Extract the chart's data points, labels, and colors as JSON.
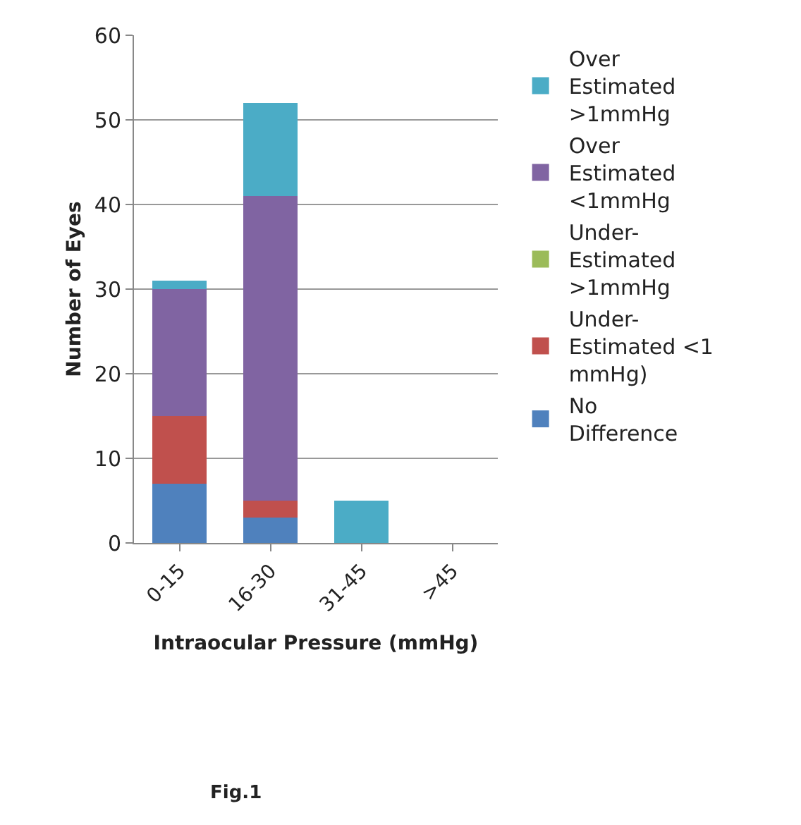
{
  "chart_data": {
    "type": "bar",
    "stacked": true,
    "xlabel": "Intraocular Pressure (mmHg)",
    "ylabel": "Number of Eyes",
    "categories": [
      "0-15",
      "16-30",
      "31-45",
      ">45"
    ],
    "series": [
      {
        "name": "No Difference",
        "color": "#4f81bd",
        "values": [
          7,
          3,
          0,
          0
        ]
      },
      {
        "name": "Under-Estimated <1 mmHg)",
        "color": "#c0504d",
        "values": [
          8,
          2,
          0,
          0
        ]
      },
      {
        "name": "Under-Estimated >1mmHg",
        "color": "#9bbb59",
        "values": [
          0,
          0,
          0,
          0
        ]
      },
      {
        "name": "Over Estimated <1mmHg",
        "color": "#8064a2",
        "values": [
          15,
          36,
          0,
          0
        ]
      },
      {
        "name": "Over Estimated >1mmHg",
        "color": "#4bacc6",
        "values": [
          1,
          11,
          5,
          0
        ]
      }
    ],
    "ylim": [
      0,
      60
    ],
    "yticks": [
      0,
      10,
      20,
      30,
      40,
      50,
      60
    ],
    "grid": "y",
    "legend": "right",
    "annotations": [
      "Fig.1"
    ]
  }
}
